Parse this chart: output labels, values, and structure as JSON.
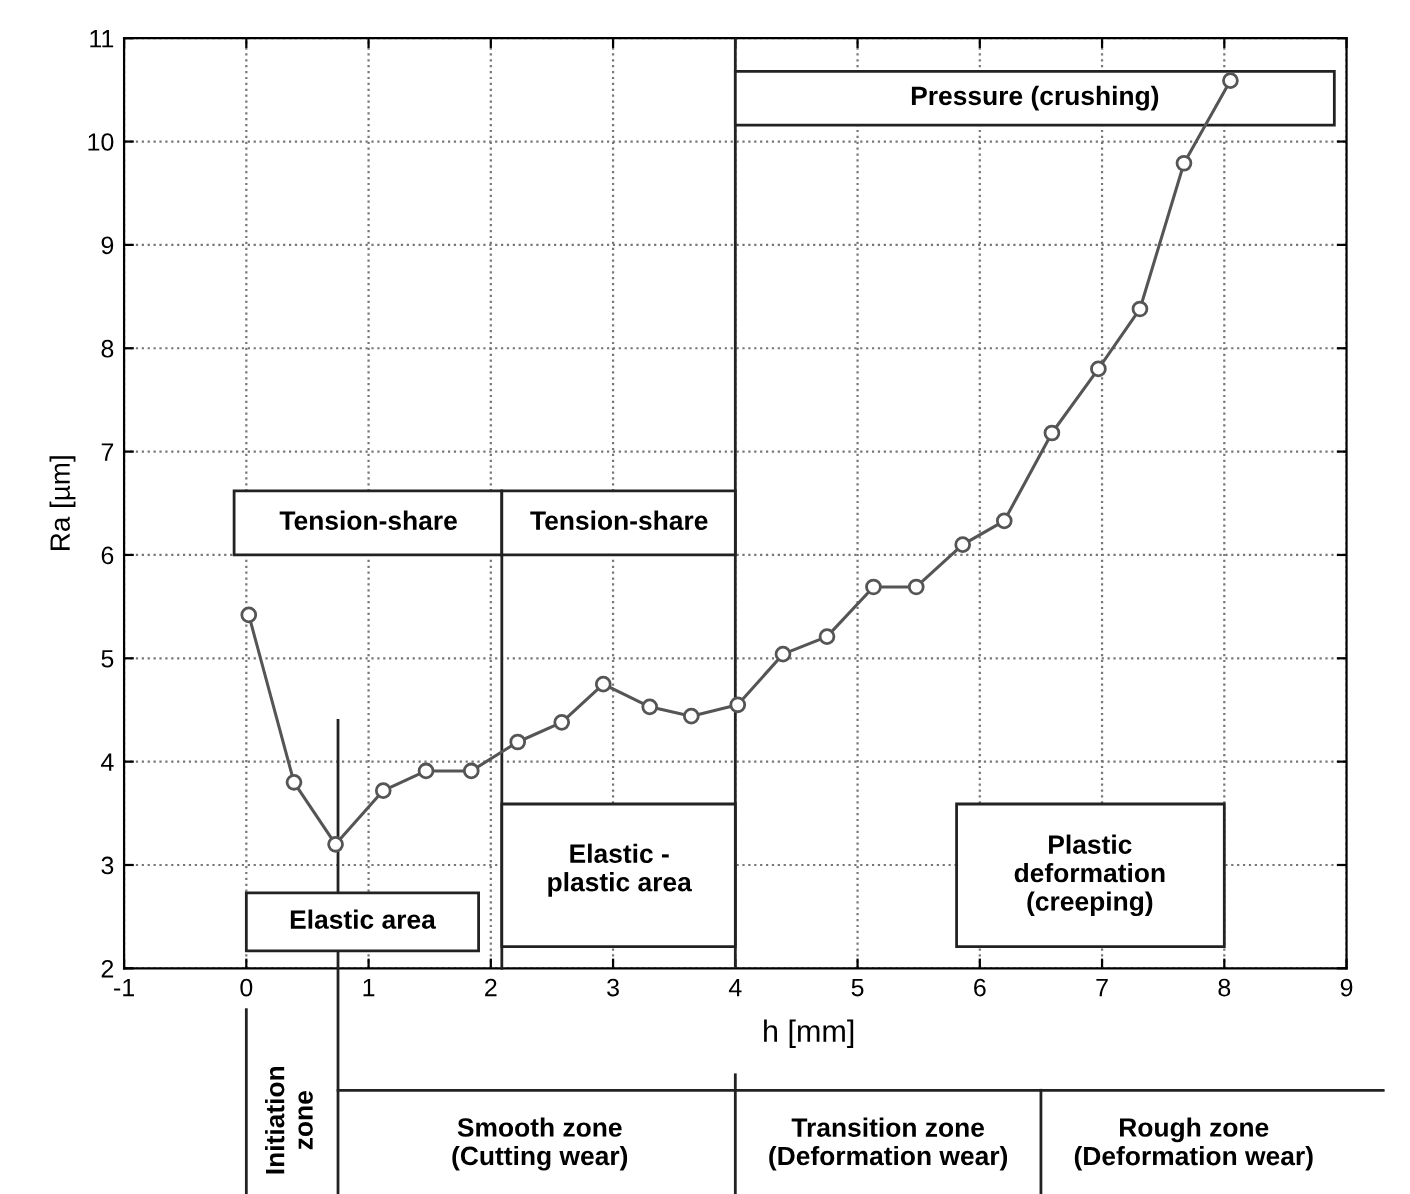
{
  "chart_data": {
    "type": "line",
    "xlabel": "h [mm]",
    "ylabel": "Ra [µm]",
    "x": [
      0.02,
      0.39,
      0.73,
      1.12,
      1.47,
      1.84,
      2.22,
      2.58,
      2.92,
      3.3,
      3.64,
      4.02,
      4.39,
      4.75,
      5.13,
      5.48,
      5.86,
      6.2,
      6.59,
      6.97,
      7.31,
      7.67,
      8.05
    ],
    "series": [
      {
        "color": "#555555",
        "values": [
          5.42,
          3.8,
          3.2,
          3.72,
          3.91,
          3.91,
          4.19,
          4.38,
          4.75,
          4.53,
          4.44,
          4.55,
          5.04,
          5.21,
          5.69,
          5.69,
          6.1,
          6.33,
          7.18,
          7.8,
          8.38,
          9.79,
          10.59
        ]
      }
    ],
    "xlim": [
      -1,
      9
    ],
    "ylim": [
      2,
      11
    ],
    "xticks": [
      -1,
      0,
      1,
      2,
      3,
      4,
      5,
      6,
      7,
      8,
      9
    ],
    "yticks": [
      2,
      3,
      4,
      5,
      6,
      7,
      8,
      9,
      10,
      11
    ],
    "ref_lines": [
      {
        "axis": "x",
        "value": 4,
        "color": "#222222"
      }
    ],
    "grid": true,
    "marker": "circle",
    "line_style": "solid",
    "annotations": [
      "Tension-share",
      "Tension-share",
      "Pressure (crushing)",
      "Elastic area",
      "Elastic -\nplastic area",
      "Plastic\ndeformation\n(creeping)",
      "Initiation\nzone",
      "Smooth zone\n(Cutting wear)",
      "Transition zone\n(Deformation wear)",
      "Rough zone\n(Deformation wear)"
    ]
  }
}
